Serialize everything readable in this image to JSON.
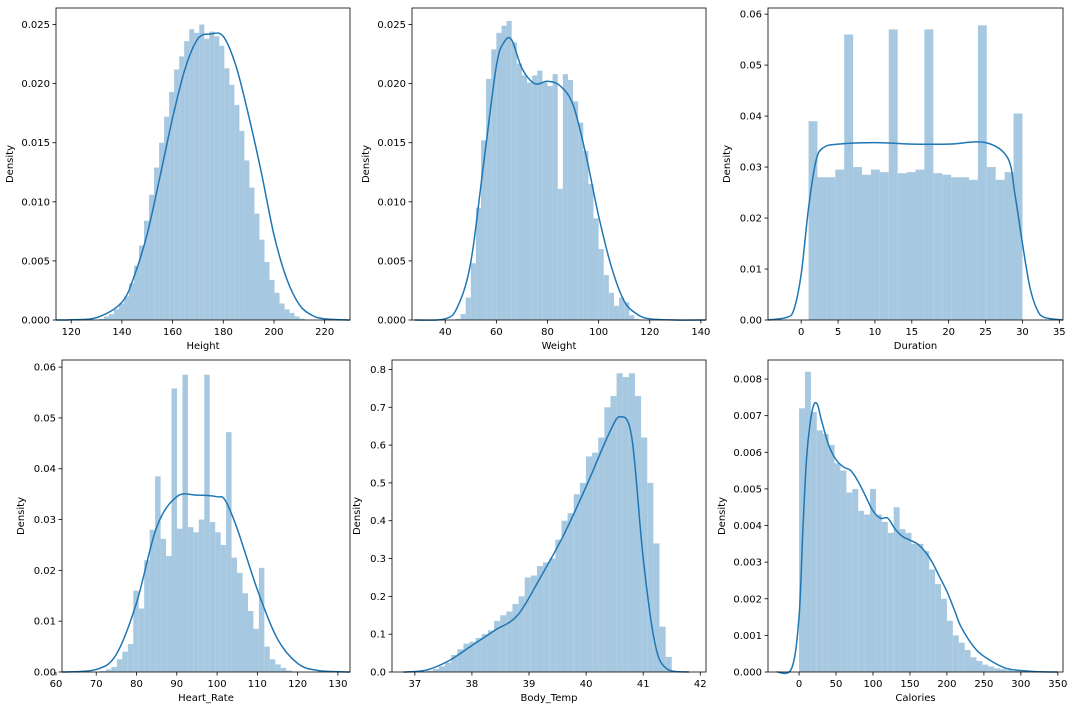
{
  "colors": {
    "bar": "#a6c8e0",
    "kde": "#1f77b4",
    "axis": "#000000"
  },
  "chart_data": [
    {
      "type": "histogram-kde",
      "xlabel": "Height",
      "ylabel": "Density",
      "xlim": [
        114,
        230
      ],
      "ylim": [
        0,
        0.0264
      ],
      "xticks": [
        120,
        140,
        160,
        180,
        200,
        220
      ],
      "yticks": [
        0.0,
        0.005,
        0.01,
        0.015,
        0.02,
        0.025
      ],
      "ytick_decimals": 3,
      "bar_range": [
        123,
        222
      ],
      "bars": [
        0,
        0,
        0,
        0,
        0.0001,
        0.0003,
        0.0005,
        0.0009,
        0.0014,
        0.002,
        0.0031,
        0.0046,
        0.0063,
        0.0084,
        0.0106,
        0.0129,
        0.015,
        0.0172,
        0.0193,
        0.0212,
        0.0223,
        0.0236,
        0.0246,
        0.0243,
        0.025,
        0.0238,
        0.0244,
        0.024,
        0.0232,
        0.0213,
        0.0199,
        0.0182,
        0.016,
        0.0135,
        0.0112,
        0.009,
        0.0068,
        0.0049,
        0.0034,
        0.0023,
        0.0014,
        0.0009,
        0.0006,
        0.0003,
        0.0001,
        0,
        0,
        0,
        0,
        0
      ],
      "kde_x": [
        114,
        120,
        130,
        140,
        145,
        150,
        155,
        160,
        165,
        170,
        175,
        180,
        185,
        190,
        195,
        200,
        205,
        210,
        215,
        220,
        230
      ],
      "kde_y": [
        0,
        2e-05,
        0.0002,
        0.0015,
        0.0038,
        0.0073,
        0.0121,
        0.0171,
        0.0213,
        0.0238,
        0.0242,
        0.024,
        0.0215,
        0.0173,
        0.0125,
        0.0072,
        0.0035,
        0.0013,
        0.0004,
        0.0001,
        0
      ]
    },
    {
      "type": "histogram-kde",
      "xlabel": "Weight",
      "ylabel": "Density",
      "xlim": [
        27,
        142
      ],
      "ylim": [
        0,
        0.0264
      ],
      "xticks": [
        40,
        60,
        80,
        100,
        120,
        140
      ],
      "yticks": [
        0.0,
        0.005,
        0.01,
        0.015,
        0.02,
        0.025
      ],
      "ytick_decimals": 3,
      "bar_range": [
        36,
        132
      ],
      "bars": [
        0,
        0,
        0,
        0,
        0.0001,
        0.0005,
        0.0019,
        0.0048,
        0.0095,
        0.0152,
        0.0204,
        0.0229,
        0.0243,
        0.0249,
        0.0253,
        0.0235,
        0.0217,
        0.0207,
        0.0201,
        0.0207,
        0.0211,
        0.0201,
        0.0198,
        0.0208,
        0.0111,
        0.0208,
        0.0203,
        0.0185,
        0.0167,
        0.0143,
        0.0115,
        0.0086,
        0.006,
        0.0038,
        0.0023,
        0.0012,
        0.0019,
        0.0015,
        0.0004,
        0.0001,
        0,
        0,
        0,
        0,
        0,
        0,
        0,
        0
      ],
      "kde_x": [
        28,
        40,
        45,
        50,
        55,
        60,
        63,
        66,
        70,
        75,
        80,
        85,
        90,
        95,
        100,
        105,
        110,
        115,
        120,
        130,
        142
      ],
      "kde_y": [
        0,
        0.0001,
        0.0012,
        0.0049,
        0.0132,
        0.0215,
        0.0235,
        0.0237,
        0.0213,
        0.02,
        0.0202,
        0.0198,
        0.0182,
        0.014,
        0.0088,
        0.0045,
        0.0016,
        0.0005,
        0.0001,
        0,
        0
      ]
    },
    {
      "type": "histogram-kde",
      "xlabel": "Duration",
      "ylabel": "Density",
      "xlim": [
        -4.5,
        35.5
      ],
      "ylim": [
        0,
        0.0612
      ],
      "xticks": [
        0,
        5,
        10,
        15,
        20,
        25,
        30,
        35
      ],
      "yticks": [
        0.0,
        0.01,
        0.02,
        0.03,
        0.04,
        0.05,
        0.06
      ],
      "ytick_decimals": 2,
      "bar_range": [
        1,
        30
      ],
      "bars": [
        0.039,
        0.028,
        0.028,
        0.0295,
        0.056,
        0.03,
        0.0285,
        0.0295,
        0.029,
        0.057,
        0.0288,
        0.029,
        0.0295,
        0.057,
        0.0288,
        0.0285,
        0.028,
        0.028,
        0.0275,
        0.0578,
        0.03,
        0.0275,
        0.029,
        0.0405
      ],
      "kde_x": [
        -4.5,
        -2,
        -1,
        0,
        1,
        2,
        3,
        5,
        10,
        15,
        20,
        25,
        28,
        29,
        30,
        31,
        32,
        33,
        35.5
      ],
      "kde_y": [
        0,
        0.0005,
        0.002,
        0.009,
        0.022,
        0.0312,
        0.0338,
        0.0345,
        0.0348,
        0.0345,
        0.0345,
        0.0348,
        0.0318,
        0.0245,
        0.015,
        0.0065,
        0.002,
        0.0005,
        0
      ]
    },
    {
      "type": "histogram-kde",
      "xlabel": "Heart_Rate",
      "ylabel": "Density",
      "xlim": [
        61.5,
        133
      ],
      "ylim": [
        0,
        0.0614
      ],
      "xticks": [
        60,
        70,
        80,
        90,
        100,
        110,
        120,
        130
      ],
      "yticks": [
        0.0,
        0.01,
        0.02,
        0.03,
        0.04,
        0.05,
        0.06
      ],
      "ytick_decimals": 2,
      "bar_range": [
        67,
        128
      ],
      "bars": [
        0,
        0,
        0,
        0.0002,
        0.0005,
        0.001,
        0.0025,
        0.004,
        0.0055,
        0.016,
        0.0125,
        0.022,
        0.028,
        0.0385,
        0.0262,
        0.0228,
        0.0558,
        0.0282,
        0.0585,
        0.0285,
        0.0275,
        0.03,
        0.0585,
        0.0295,
        0.0275,
        0.025,
        0.0472,
        0.0225,
        0.0195,
        0.0155,
        0.012,
        0.0085,
        0.0205,
        0.005,
        0.0025,
        0.0015,
        0.0008,
        0.0003,
        0.0001,
        0,
        0,
        0,
        0,
        0,
        0
      ],
      "kde_x": [
        61.5,
        70,
        75,
        80,
        85,
        90,
        95,
        100,
        102,
        105,
        110,
        115,
        120,
        125,
        133
      ],
      "kde_y": [
        0,
        0.0005,
        0.0035,
        0.0136,
        0.0285,
        0.0345,
        0.0348,
        0.0345,
        0.0338,
        0.0282,
        0.0162,
        0.0065,
        0.0017,
        0.0003,
        0
      ]
    },
    {
      "type": "histogram-kde",
      "xlabel": "Body_Temp",
      "ylabel": "Density",
      "xlim": [
        36.6,
        42.1
      ],
      "ylim": [
        0,
        0.825
      ],
      "xticks": [
        37,
        38,
        39,
        40,
        41,
        42
      ],
      "yticks": [
        0.0,
        0.1,
        0.2,
        0.3,
        0.4,
        0.5,
        0.6,
        0.7,
        0.8
      ],
      "ytick_decimals": 1,
      "bar_range": [
        37.1,
        41.5
      ],
      "bars": [
        0,
        0.003,
        0.008,
        0.015,
        0.025,
        0.045,
        0.06,
        0.075,
        0.08,
        0.09,
        0.1,
        0.11,
        0.135,
        0.15,
        0.16,
        0.18,
        0.2,
        0.25,
        0.255,
        0.28,
        0.29,
        0.3,
        0.35,
        0.4,
        0.42,
        0.47,
        0.5,
        0.57,
        0.58,
        0.62,
        0.7,
        0.73,
        0.79,
        0.78,
        0.79,
        0.73,
        0.62,
        0.5,
        0.34,
        0.12,
        0.04
      ],
      "kde_x": [
        36.8,
        37.2,
        37.6,
        38,
        38.4,
        38.8,
        39.2,
        39.6,
        40,
        40.4,
        40.6,
        40.8,
        41,
        41.2,
        41.4,
        41.8
      ],
      "kde_y": [
        0,
        0.005,
        0.03,
        0.07,
        0.11,
        0.15,
        0.25,
        0.36,
        0.49,
        0.63,
        0.675,
        0.62,
        0.3,
        0.08,
        0.01,
        0
      ]
    },
    {
      "type": "histogram-kde",
      "xlabel": "Calories",
      "ylabel": "Density",
      "xlim": [
        -42,
        357
      ],
      "ylim": [
        0,
        0.00852
      ],
      "xticks": [
        0,
        50,
        100,
        150,
        200,
        250,
        300,
        350
      ],
      "yticks": [
        0.0,
        0.001,
        0.002,
        0.003,
        0.004,
        0.005,
        0.006,
        0.007,
        0.008
      ],
      "ytick_decimals": 3,
      "bar_range": [
        0,
        320
      ],
      "bars": [
        0.0072,
        0.0082,
        0.0071,
        0.0066,
        0.0065,
        0.0062,
        0.0057,
        0.0055,
        0.0049,
        0.005,
        0.0044,
        0.0043,
        0.005,
        0.0043,
        0.0041,
        0.0038,
        0.0045,
        0.0039,
        0.0038,
        0.0035,
        0.0035,
        0.0033,
        0.0028,
        0.0024,
        0.002,
        0.0014,
        0.001,
        0.0008,
        0.0006,
        0.0004,
        0.0003,
        0.0002,
        0.00015,
        0.0001,
        8e-05,
        5e-05,
        3e-05,
        2e-05,
        1e-05,
        0
      ],
      "kde_x": [
        -30,
        -10,
        0,
        5,
        10,
        15,
        20,
        25,
        30,
        40,
        50,
        60,
        70,
        80,
        90,
        100,
        110,
        120,
        130,
        140,
        150,
        160,
        170,
        180,
        190,
        200,
        210,
        220,
        240,
        260,
        280,
        300,
        320,
        350
      ],
      "kde_y": [
        0,
        0.0001,
        0.0015,
        0.0038,
        0.0058,
        0.0068,
        0.0073,
        0.0073,
        0.0069,
        0.0062,
        0.0058,
        0.0056,
        0.0055,
        0.0052,
        0.0048,
        0.0044,
        0.0042,
        0.0042,
        0.0039,
        0.0037,
        0.0036,
        0.0035,
        0.0033,
        0.003,
        0.0026,
        0.0022,
        0.0017,
        0.0012,
        0.0006,
        0.0003,
        0.0001,
        4e-05,
        1e-05,
        0
      ]
    }
  ]
}
